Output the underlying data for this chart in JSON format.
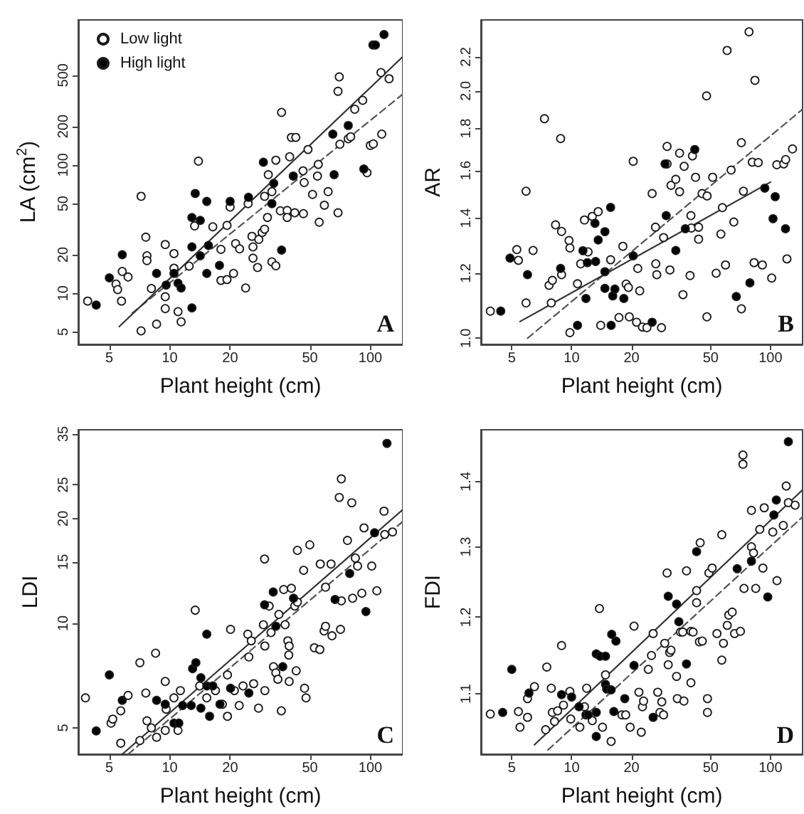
{
  "chart_data": [
    {
      "type": "scatter",
      "xlabel": "Plant height (cm)",
      "ylabel": "LA (cm$^{2}$)",
      "log": "xy",
      "xlim": [
        3.5,
        145
      ],
      "xticks": [
        5,
        10,
        20,
        50,
        100
      ],
      "ylim": [
        4,
        1350
      ],
      "yticks": [
        5,
        10,
        20,
        50,
        100,
        200,
        500
      ],
      "legend": "top left",
      "marker": "circle",
      "annotations": [
        "A"
      ],
      "series": [
        {
          "name": "Low light",
          "color": "#ffffff",
          "x": [
            3.9,
            5.4,
            5.5,
            5.8,
            5.75,
            6.2,
            7.2,
            7.6,
            7.7,
            7.7,
            8.1,
            8.6,
            7.2,
            9.5,
            9.5,
            9.5,
            10.5,
            10.5,
            11,
            11.4,
            12.5,
            13.3,
            13.9,
            16.4,
            18,
            18,
            19.3,
            19.3,
            20,
            20.8,
            21.3,
            22.3,
            23.9,
            24.6,
            25.7,
            26,
            26,
            27.4,
            27.8,
            28.9,
            29.7,
            30.7,
            29.7,
            31,
            32.3,
            33.8,
            33.8,
            32.3,
            36.1,
            35.6,
            38.5,
            38.5,
            39.6,
            40.4,
            42.5,
            42,
            46.4,
            48.9,
            46.2,
            46.8,
            51.5,
            55,
            54.5,
            55.6,
            59,
            61.6,
            70,
            69,
            69,
            70.5,
            77.6,
            79.8,
            83.6,
            91.6,
            96.3,
            100,
            103.5,
            114,
            113,
            124
          ],
          "values": [
            8.7,
            11.8,
            10.7,
            14.8,
            8.7,
            13.4,
            57,
            27.4,
            19.6,
            18,
            10.9,
            5.75,
            5.1,
            24,
            9.4,
            7.6,
            20.4,
            15.7,
            7.2,
            6,
            16.3,
            33.5,
            107,
            33,
            22,
            12.6,
            12.8,
            33.8,
            47,
            14.3,
            24.4,
            22.2,
            11,
            50,
            27.8,
            23,
            18.8,
            15.9,
            26.3,
            29.8,
            31.6,
            39,
            57,
            84,
            17.6,
            16.4,
            109,
            62,
            257,
            44,
            44.2,
            39,
            116,
            164,
            164,
            42.4,
            41.8,
            132,
            90,
            73,
            59,
            101,
            82,
            35.8,
            48.6,
            62,
            486,
            375,
            42.4,
            145,
            160,
            166,
            272,
            319,
            87,
            142,
            146,
            174,
            525,
            470
          ]
        },
        {
          "name": "High light",
          "color": "#000000",
          "x": [
            4.3,
            5,
            5.8,
            8.6,
            9.6,
            10.5,
            11,
            11.4,
            12.9,
            12.9,
            12.9,
            13.4,
            14.2,
            14.2,
            15.3,
            15.3,
            15.6,
            17.7,
            20,
            24.7,
            29.3,
            32.3,
            33,
            36.1,
            41.3,
            65,
            66,
            77.6,
            92.8,
            103,
            106,
            117
          ],
          "values": [
            8.1,
            13.2,
            20,
            14.3,
            11.6,
            14.3,
            12,
            11,
            7.7,
            23,
            38.9,
            60,
            37,
            19.6,
            52,
            14.3,
            23.6,
            16.5,
            52,
            56,
            105,
            50,
            72,
            21.7,
            82,
            174,
            84,
            203,
            93,
            860,
            860,
            1040
          ]
        },
        {
          "type": "line",
          "color": "#555555",
          "line_style": "dashed",
          "marker": "none",
          "x": [
            6.5,
            145
          ],
          "values": [
            7,
            356
          ]
        },
        {
          "type": "line",
          "color": "#333333",
          "line_style": "solid",
          "marker": "none",
          "x": [
            5.6,
            145
          ],
          "values": [
            5.5,
            697
          ]
        }
      ]
    },
    {
      "type": "scatter",
      "xlabel": "Plant height (cm)",
      "ylabel": "AR",
      "log": "xy",
      "xlim": [
        3.5,
        145
      ],
      "xticks": [
        5,
        10,
        20,
        50,
        100
      ],
      "ylim": [
        0.983,
        2.44
      ],
      "yticks": [
        {
          "value": 1.0,
          "label": "1.0"
        },
        1.2,
        1.4,
        1.6,
        1.8,
        {
          "value": 2.0,
          "label": "2.0"
        },
        2.2
      ],
      "marker": "circle",
      "annotations": [
        "B"
      ],
      "series": [
        {
          "color": "#ffffff",
          "x": [
            3.9,
            5.3,
            5.4,
            5.9,
            5.9,
            6.4,
            7.3,
            7.9,
            7.7,
            8,
            8.3,
            8.8,
            8.9,
            8.9,
            9.7,
            9.8,
            9.8,
            10.7,
            11.1,
            11.6,
            12.1,
            12.7,
            13.6,
            14,
            15.7,
            17.3,
            18.1,
            18.8,
            19.3,
            19.5,
            20.4,
            21.2,
            21.5,
            22,
            22.7,
            23.9,
            25.4,
            26.4,
            26.5,
            26.8,
            28.3,
            29,
            30.2,
            30.2,
            31.2,
            31.6,
            33.4,
            34.9,
            34.9,
            36.8,
            36.3,
            39.4,
            39.8,
            40,
            40.5,
            42,
            43.5,
            43.5,
            47.7,
            45.3,
            48,
            47.9,
            51.2,
            53.3,
            56.3,
            57.3,
            59.4,
            60.5,
            63.4,
            65.4,
            71.4,
            71.4,
            73.1,
            78,
            83.5,
            82.7,
            81,
            86.8,
            91,
            101.4,
            107.6,
            116.6,
            119.2,
            129,
            121
          ],
          "values": [
            1.079,
            1.282,
            1.244,
            1.51,
            1.104,
            1.279,
            1.85,
            1.104,
            1.16,
            1.176,
            1.374,
            1.75,
            1.349,
            1.195,
            1.315,
            1.288,
            1.016,
            1.165,
            1.232,
            1.393,
            1.274,
            1.407,
            1.426,
            1.037,
            1.246,
            1.06,
            1.294,
            1.164,
            1.153,
            1.062,
            1.642,
            1.046,
            1.216,
            1.142,
            1.032,
            1.03,
            1.5,
            1.365,
            1.232,
            1.195,
            1.03,
            1.326,
            1.712,
            1.63,
            1.211,
            1.535,
            1.561,
            1.68,
            1.508,
            1.619,
            1.13,
            1.192,
            1.41,
            1.362,
            1.667,
            1.57,
            1.365,
            1.32,
            1.972,
            1.5,
            1.49,
            1.062,
            1.57,
            1.2,
            1.339,
            1.442,
            1.228,
            2.24,
            1.602,
            1.385,
            1.73,
            1.086,
            1.51,
            2.36,
            2.06,
            1.236,
            1.638,
            1.636,
            1.228,
            1.184,
            1.626,
            1.63,
            1.65,
            1.7,
            1.249
          ]
        },
        {
          "color": "#000000",
          "x": [
            4.4,
            4.9,
            6,
            8.8,
            10.7,
            11.4,
            11.8,
            12,
            13.1,
            13.2,
            13.6,
            14.7,
            14.7,
            14.7,
            15.7,
            15.8,
            16.1,
            16.5,
            18.3,
            20.4,
            25.4,
            29.9,
            29.5,
            33.4,
            37.3,
            41.6,
            93.6,
            105.6,
            103,
            119,
            67.3,
            78.8
          ],
          "values": [
            1.079,
            1.252,
            1.195,
            1.216,
            1.037,
            1.278,
            1.118,
            1.236,
            1.38,
            1.24,
            1.317,
            1.348,
            1.205,
            1.15,
            1.443,
            1.037,
            1.126,
            1.148,
            1.118,
            1.26,
            1.046,
            1.41,
            1.63,
            1.279,
            1.359,
            1.697,
            1.523,
            1.487,
            1.398,
            1.359,
            1.124,
            1.168
          ]
        },
        {
          "type": "line",
          "color": "#555555",
          "line_style": "dashed",
          "marker": "none",
          "x": [
            6,
            145
          ],
          "values": [
            1.0,
            1.9
          ]
        },
        {
          "type": "line",
          "color": "#333333",
          "line_style": "solid",
          "marker": "none",
          "x": [
            5.5,
            100
          ],
          "values": [
            1.048,
            1.549
          ]
        }
      ]
    },
    {
      "type": "scatter",
      "xlabel": "Plant height (cm)",
      "ylabel": "LDI",
      "log": "xy",
      "xlim": [
        3.5,
        145
      ],
      "xticks": [
        5,
        10,
        20,
        50,
        100
      ],
      "ylim": [
        4.2,
        36
      ],
      "yticks": [
        5,
        10,
        15,
        20,
        25,
        35
      ],
      "marker": "circle",
      "annotations": [
        "C"
      ],
      "series": [
        {
          "color": "#ffffff",
          "x": [
            3.8,
            5.1,
            5.2,
            5.7,
            5.7,
            6.2,
            7.1,
            7.1,
            7.6,
            7.7,
            8.1,
            8.5,
            8.6,
            9.5,
            9.6,
            9.5,
            10.5,
            11.3,
            11,
            13.4,
            14.1,
            15.3,
            16.9,
            18.3,
            19.4,
            20.1,
            19.4,
            21,
            22.2,
            23.2,
            24.5,
            24.8,
            25.5,
            26.2,
            27.7,
            29.3,
            29.8,
            29.7,
            29.8,
            31.3,
            32,
            32.9,
            33.8,
            34.6,
            35,
            36,
            37,
            37.6,
            38.8,
            39.4,
            39.2,
            39.4,
            40.4,
            42,
            42.7,
            43.3,
            43.3,
            46.5,
            47,
            47.8,
            49.9,
            52.6,
            56,
            56.3,
            58.8,
            59.8,
            59.8,
            63.7,
            64.4,
            70,
            71.7,
            71,
            71.7,
            76.9,
            80.8,
            81.6,
            84.2,
            86.4,
            90.7,
            93,
            101.6,
            107.8,
            117,
            118,
            129
          ],
          "values": [
            6.1,
            5.16,
            5.3,
            5.6,
            4.52,
            6.2,
            7.7,
            4.6,
            6.3,
            5.24,
            5.0,
            8.2,
            4.7,
            6.8,
            5.66,
            4.92,
            6.1,
            6.4,
            4.92,
            10.9,
            6.6,
            6.1,
            6.4,
            5.85,
            5.4,
            9.6,
            7.1,
            6.4,
            5.8,
            6.6,
            9.3,
            8.0,
            8.9,
            6.7,
            5.7,
            9.9,
            6.4,
            15.3,
            8.6,
            11.2,
            9.4,
            7.5,
            7.2,
            6.9,
            10.6,
            5.6,
            12.5,
            9.9,
            8.9,
            8.6,
            8.1,
            6.8,
            12.6,
            11.2,
            7.3,
            11.5,
            16.2,
            14.2,
            6.5,
            6.1,
            16.8,
            8.5,
            8.4,
            14.8,
            9.5,
            9.8,
            12.7,
            14.8,
            9.2,
            23,
            26,
            9.6,
            11.6,
            17.3,
            22.2,
            11.8,
            15.4,
            14.6,
            12.2,
            18.8,
            14.6,
            12.4,
            21,
            18,
            18.3
          ]
        },
        {
          "color": "#000000",
          "x": [
            4.3,
            5,
            5.8,
            8.6,
            9.5,
            10.5,
            11.1,
            11.6,
            12.8,
            13,
            13.5,
            14.3,
            14.3,
            15.3,
            15.3,
            15.8,
            16.4,
            17.8,
            20.1,
            24.8,
            29.7,
            32.8,
            33.8,
            36.6,
            41.4,
            66.7,
            78.9,
            95,
            105,
            121
          ],
          "values": [
            4.9,
            7.1,
            6.0,
            6.0,
            5.85,
            5.16,
            5.16,
            5.8,
            5.8,
            7.4,
            7.7,
            6.97,
            5.7,
            9.3,
            6.6,
            5.4,
            6.6,
            5.85,
            6.5,
            6.3,
            11.3,
            12.3,
            9.8,
            7.5,
            11.8,
            11.7,
            13.9,
            10.8,
            18.2,
            32.9
          ]
        },
        {
          "type": "line",
          "color": "#555555",
          "line_style": "dashed",
          "marker": "none",
          "x": [
            6.2,
            145
          ],
          "values": [
            4.2,
            19.6
          ]
        },
        {
          "type": "line",
          "color": "#333333",
          "line_style": "solid",
          "marker": "none",
          "x": [
            5.8,
            145
          ],
          "values": [
            4.2,
            21.2
          ]
        }
      ]
    },
    {
      "type": "scatter",
      "xlabel": "Plant height (cm)",
      "ylabel": "FDI",
      "log": "xy",
      "xlim": [
        3.5,
        145
      ],
      "xticks": [
        5,
        10,
        20,
        50,
        100
      ],
      "ylim": [
        1.027,
        1.485
      ],
      "yticks": [
        1.1,
        1.2,
        1.3,
        1.4
      ],
      "marker": "circle",
      "annotations": [
        "D"
      ],
      "series": [
        {
          "color": "#ffffff",
          "x": [
            3.9,
            5.4,
            5.5,
            6,
            6,
            6.5,
            7.4,
            7.5,
            7.9,
            8,
            8.2,
            8.5,
            8.9,
            9.1,
            9.8,
            9.9,
            11,
            11.6,
            11.9,
            12.7,
            13.8,
            14.3,
            14.8,
            15.8,
            17.9,
            18.7,
            19.7,
            20.6,
            21.8,
            22.4,
            22.7,
            23,
            24.3,
            25.2,
            25.7,
            27.1,
            27.8,
            28.4,
            29,
            29.4,
            30.2,
            30.6,
            31.1,
            31.6,
            33.7,
            34,
            35.3,
            36.2,
            36.7,
            37.8,
            39.8,
            39.8,
            40.8,
            42.5,
            42.5,
            44.3,
            43.9,
            45.4,
            48.2,
            48.2,
            49,
            50.9,
            53.8,
            56.9,
            56.9,
            58,
            60.6,
            61.7,
            64.2,
            66,
            70.6,
            72.7,
            72.7,
            73.6,
            80.2,
            80.2,
            82.2,
            84.3,
            88.3,
            93,
            91.6,
            102.7,
            107.8,
            116,
            120,
            123,
            133
          ],
          "values": [
            1.075,
            1.078,
            1.059,
            1.071,
            1.094,
            1.109,
            1.056,
            1.134,
            1.107,
            1.077,
            1.066,
            1.079,
            1.162,
            1.086,
            1.103,
            1.069,
            1.059,
            1.084,
            1.107,
            1.067,
            1.212,
            1.059,
            1.124,
            1.042,
            1.074,
            1.074,
            1.059,
            1.188,
            1.102,
            1.053,
            1.084,
            1.091,
            1.131,
            1.149,
            1.178,
            1.102,
            1.077,
            1.09,
            1.074,
            1.165,
            1.262,
            1.137,
            1.153,
            1.156,
            1.122,
            1.094,
            1.18,
            1.18,
            1.091,
            1.265,
            1.181,
            1.114,
            1.18,
            1.237,
            1.22,
            1.306,
            1.167,
            1.168,
            1.094,
            1.077,
            1.262,
            1.269,
            1.178,
            1.318,
            1.143,
            1.165,
            1.189,
            1.203,
            1.207,
            1.178,
            1.181,
            1.443,
            1.428,
            1.24,
            1.355,
            1.3,
            1.291,
            1.24,
            1.326,
            1.359,
            1.269,
            1.322,
            1.251,
            1.332,
            1.393,
            1.367,
            1.363
          ]
        },
        {
          "color": "#000000",
          "x": [
            4.5,
            5,
            6.1,
            8.9,
            10,
            10.9,
            11.8,
            12.1,
            13.3,
            13.3,
            13.3,
            13.9,
            14.8,
            14.8,
            15,
            15.8,
            15.9,
            16.3,
            16.7,
            18.5,
            20.6,
            25.7,
            30.6,
            33.7,
            34.6,
            37.8,
            42.5,
            68,
            80.2,
            96.9,
            104,
            107,
            123
          ],
          "values": [
            1.077,
            1.131,
            1.101,
            1.099,
            1.096,
            1.084,
            1.074,
            1.074,
            1.048,
            1.077,
            1.151,
            1.148,
            1.148,
            1.112,
            1.106,
            1.105,
            1.177,
            1.078,
            1.168,
            1.094,
            1.136,
            1.071,
            1.229,
            1.218,
            1.194,
            1.138,
            1.293,
            1.268,
            1.279,
            1.228,
            1.348,
            1.371,
            1.465
          ]
        },
        {
          "type": "line",
          "color": "#555555",
          "line_style": "dashed",
          "marker": "none",
          "x": [
            7.6,
            145
          ],
          "values": [
            1.032,
            1.345
          ]
        },
        {
          "type": "line",
          "color": "#333333",
          "line_style": "solid",
          "marker": "none",
          "x": [
            6.5,
            144
          ],
          "values": [
            1.038,
            1.386
          ]
        }
      ]
    }
  ]
}
